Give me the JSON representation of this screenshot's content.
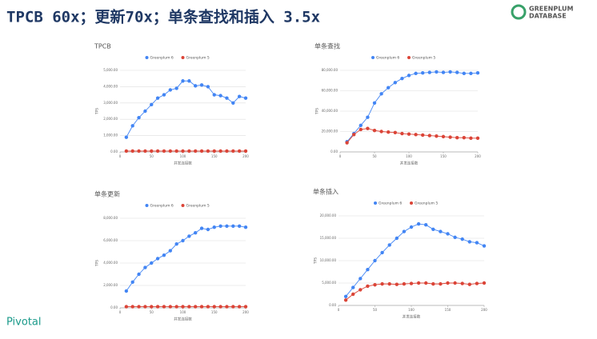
{
  "header": {
    "title": "TPCB 60x；更新70x；单条查找和插入 3.5x",
    "logo": [
      "GREENPLUM",
      "DATABASE"
    ]
  },
  "footer": "Pivotal",
  "chart_data": [
    {
      "type": "line",
      "title": "TPCB",
      "y_label": "TPS",
      "x_label": "并发连接数",
      "x": [
        10,
        20,
        30,
        40,
        50,
        60,
        70,
        80,
        90,
        100,
        110,
        120,
        130,
        140,
        150,
        160,
        170,
        180,
        190,
        200
      ],
      "xlim": [
        0,
        200
      ],
      "xticks": [
        0,
        50,
        100,
        150,
        200
      ],
      "ylim": [
        0,
        5000
      ],
      "yticks": [
        {
          "value": 0,
          "label": "0.00"
        },
        {
          "value": 1000,
          "label": "1,000.00"
        },
        {
          "value": 2000,
          "label": "2,000.00"
        },
        {
          "value": 3000,
          "label": "3,000.00"
        },
        {
          "value": 4000,
          "label": "4,000.00"
        },
        {
          "value": 5000,
          "label": "5,000.00"
        }
      ],
      "grid": true,
      "series": [
        {
          "name": "Greenplum 6",
          "color": "#4285f4",
          "values": [
            900,
            1600,
            2100,
            2500,
            2900,
            3300,
            3500,
            3800,
            3900,
            4350,
            4350,
            4050,
            4100,
            4000,
            3500,
            3450,
            3300,
            3000,
            3400,
            3300
          ]
        },
        {
          "name": "Greenplum 5",
          "color": "#db4437",
          "values": [
            50,
            50,
            50,
            50,
            50,
            50,
            50,
            50,
            50,
            50,
            50,
            50,
            50,
            50,
            50,
            50,
            50,
            50,
            50,
            50
          ]
        }
      ]
    },
    {
      "type": "line",
      "title": "单条查找",
      "y_label": "TPS",
      "x_label": "并发连接数",
      "x": [
        10,
        20,
        30,
        40,
        50,
        60,
        70,
        80,
        90,
        100,
        110,
        120,
        130,
        140,
        150,
        160,
        170,
        180,
        190,
        200
      ],
      "xlim": [
        0,
        200
      ],
      "xticks": [
        0,
        50,
        100,
        150,
        200
      ],
      "ylim": [
        0,
        80000
      ],
      "yticks": [
        {
          "value": 0,
          "label": "0.00"
        },
        {
          "value": 20000,
          "label": "20,000.00"
        },
        {
          "value": 40000,
          "label": "40,000.00"
        },
        {
          "value": 60000,
          "label": "60,000.00"
        },
        {
          "value": 80000,
          "label": "80,000.00"
        }
      ],
      "grid": true,
      "series": [
        {
          "name": "Greenplum 6",
          "color": "#4285f4",
          "values": [
            10000,
            18000,
            26000,
            34000,
            48000,
            57000,
            63000,
            68000,
            72000,
            75000,
            77000,
            77500,
            78000,
            78500,
            78000,
            78500,
            78000,
            77000,
            77000,
            77500
          ]
        },
        {
          "name": "Greenplum 5",
          "color": "#db4437",
          "values": [
            9000,
            17000,
            22000,
            23000,
            21000,
            20000,
            19500,
            19000,
            18000,
            17500,
            17000,
            16500,
            16000,
            15500,
            15000,
            14500,
            14000,
            14000,
            13500,
            13500
          ]
        }
      ]
    },
    {
      "type": "line",
      "title": "单条更新",
      "y_label": "TPS",
      "x_label": "并发连接数",
      "x": [
        10,
        20,
        30,
        40,
        50,
        60,
        70,
        80,
        90,
        100,
        110,
        120,
        130,
        140,
        150,
        160,
        170,
        180,
        190,
        200
      ],
      "xlim": [
        0,
        200
      ],
      "xticks": [
        0,
        50,
        100,
        150,
        200
      ],
      "ylim": [
        0,
        8000
      ],
      "yticks": [
        {
          "value": 0,
          "label": "0.00"
        },
        {
          "value": 2000,
          "label": "2,000.00"
        },
        {
          "value": 4000,
          "label": "4,000.00"
        },
        {
          "value": 6000,
          "label": "6,000.00"
        },
        {
          "value": 8000,
          "label": "8,000.00"
        }
      ],
      "grid": true,
      "series": [
        {
          "name": "Greenplum 6",
          "color": "#4285f4",
          "values": [
            1500,
            2300,
            3000,
            3600,
            4000,
            4400,
            4700,
            5100,
            5700,
            6000,
            6400,
            6700,
            7100,
            7000,
            7200,
            7300,
            7300,
            7300,
            7300,
            7200
          ]
        },
        {
          "name": "Greenplum 5",
          "color": "#db4437",
          "values": [
            100,
            100,
            100,
            100,
            100,
            100,
            100,
            100,
            100,
            100,
            100,
            100,
            100,
            100,
            100,
            100,
            100,
            100,
            100,
            100
          ]
        }
      ]
    },
    {
      "type": "line",
      "title": "单条插入",
      "y_label": "TPS",
      "x_label": "并发连接数",
      "x": [
        10,
        20,
        30,
        40,
        50,
        60,
        70,
        80,
        90,
        100,
        110,
        120,
        130,
        140,
        150,
        160,
        170,
        180,
        190,
        200
      ],
      "xlim": [
        0,
        200
      ],
      "xticks": [
        0,
        50,
        100,
        150,
        200
      ],
      "ylim": [
        0,
        20000
      ],
      "yticks": [
        {
          "value": 0,
          "label": "0.00"
        },
        {
          "value": 5000,
          "label": "5,000.00"
        },
        {
          "value": 10000,
          "label": "10,000.00"
        },
        {
          "value": 15000,
          "label": "15,000.00"
        },
        {
          "value": 20000,
          "label": "20,000.00"
        }
      ],
      "grid": true,
      "series": [
        {
          "name": "Greenplum 6",
          "color": "#4285f4",
          "values": [
            2000,
            4000,
            6000,
            8000,
            10000,
            11800,
            13500,
            15000,
            16500,
            17500,
            18200,
            18000,
            17000,
            16500,
            16000,
            15200,
            14800,
            14200,
            14000,
            13300
          ]
        },
        {
          "name": "Greenplum 5",
          "color": "#db4437",
          "values": [
            1200,
            2500,
            3500,
            4300,
            4600,
            4800,
            4800,
            4700,
            4800,
            4900,
            5000,
            5000,
            4800,
            4800,
            5000,
            5000,
            4900,
            4700,
            4900,
            5000
          ]
        }
      ]
    }
  ]
}
